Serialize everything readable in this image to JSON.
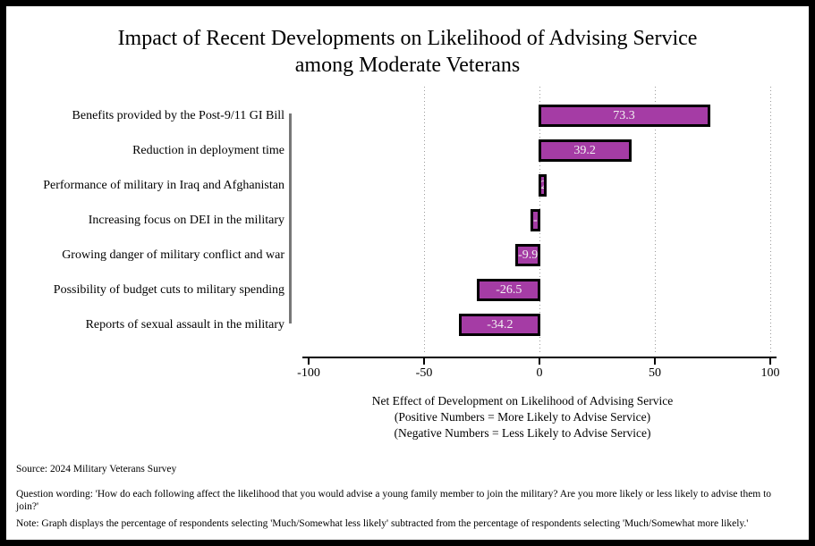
{
  "title": {
    "line1": "Impact of Recent Developments on Likelihood of Advising Service",
    "line2": "among Moderate Veterans"
  },
  "chart_data": {
    "type": "bar",
    "orientation": "horizontal",
    "title": "Impact of Recent Developments on Likelihood of Advising Service among Moderate Veterans",
    "categories": [
      "Benefits provided by the Post-9/11 GI Bill",
      "Reduction in deployment time",
      "Performance of military in Iraq and Afghanistan",
      "Increasing focus on DEI in the military",
      "Growing danger of military conflict and war",
      "Possibility of budget cuts to military spending",
      "Reports of sexual assault in the military"
    ],
    "values": [
      73.3,
      39.2,
      2.5,
      -3.3,
      -9.9,
      -26.5,
      -34.2
    ],
    "bar_labels": [
      "73.3",
      "39.2",
      "2.5",
      "-3.3",
      "-9.9",
      "-26.5",
      "-34.2"
    ],
    "x_ticks": [
      -100,
      -50,
      0,
      50,
      100
    ],
    "xlim": [
      -100,
      100
    ],
    "gridlines_at": [
      -50,
      0,
      50,
      100
    ],
    "grid": "dotted-vertical",
    "legend": "none",
    "xlabel_lines": [
      "Net Effect of Development on Likelihood of Advising Service",
      "(Positive Numbers = More Likely to Advise Service)",
      "(Negative Numbers = Less Likely to Advise Service)"
    ],
    "colors": {
      "bar_fill": "#a53ca5",
      "bar_border": "#000000",
      "bar_label_text": "#f2f2f2",
      "gridline": "#9a9a9a",
      "axis": "#000000",
      "category_axis_line": "#777777"
    }
  },
  "notes": {
    "source": "Source: 2024 Military Veterans Survey",
    "question": "Question wording: 'How do each following affect the likelihood that you would advise a young family member to join the military? Are you more likely or less likely to advise them to join?'",
    "note": "Note: Graph displays the percentage of respondents selecting 'Much/Somewhat less likely' subtracted from the percentage of respondents selecting 'Much/Somewhat more likely.'"
  }
}
